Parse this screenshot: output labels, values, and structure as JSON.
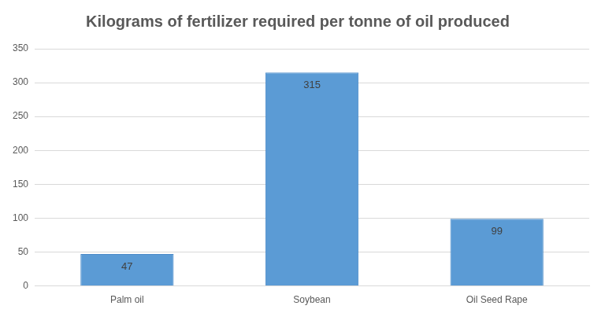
{
  "chart_data": {
    "type": "bar",
    "title": "Kilograms of fertilizer required per tonne of oil produced",
    "categories": [
      "Palm oil",
      "Soybean",
      "Oil Seed Rape"
    ],
    "values": [
      47,
      315,
      99
    ],
    "color": "#5b9bd5",
    "ylim": [
      0,
      350
    ],
    "yticks": [
      0,
      50,
      100,
      150,
      200,
      250,
      300,
      350
    ],
    "grid": true,
    "data_labels": true
  }
}
